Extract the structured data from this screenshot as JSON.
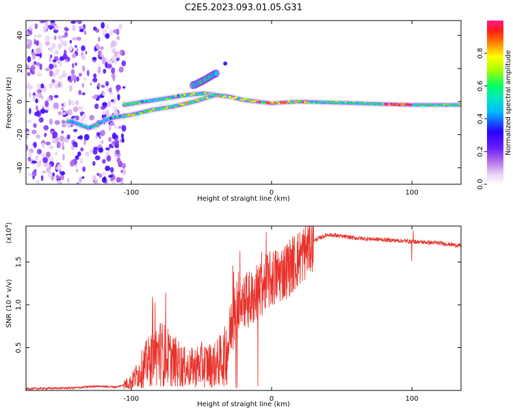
{
  "figure_title": "C2E5.2023.093.01.05.G31",
  "chart_data": [
    {
      "type": "heatmap",
      "xlabel": "Height of straight line (km)",
      "ylabel": "Frequency (Hz)",
      "xlim": [
        -175,
        135
      ],
      "ylim": [
        -50,
        49
      ],
      "xticks": [
        -100,
        0,
        100
      ],
      "yticks": [
        -40,
        -20,
        0,
        20,
        40
      ],
      "colorbar": {
        "label": "Normalized spectral amplitude",
        "range": [
          0.0,
          1.0
        ],
        "ticks": [
          0.0,
          0.2,
          0.4,
          0.6,
          0.8
        ],
        "tick_labels": [
          "0.0",
          "0.2",
          "0.4",
          "0.6",
          "0.8"
        ],
        "colormap": [
          "#ffffff",
          "#e9d3f8",
          "#8a2be2",
          "#2a00ff",
          "#00b7ff",
          "#00ff66",
          "#ffff00",
          "#ff2200",
          "#ff1a8c"
        ]
      },
      "features": {
        "noise_region_x": [
          -175,
          -105
        ],
        "main_band": [
          {
            "x": -143,
            "y": -12
          },
          {
            "x": -130,
            "y": -16
          },
          {
            "x": -115,
            "y": -10
          },
          {
            "x": -100,
            "y": -8
          },
          {
            "x": -85,
            "y": -5
          },
          {
            "x": -70,
            "y": -3
          },
          {
            "x": -55,
            "y": 0
          },
          {
            "x": -40,
            "y": 4
          },
          {
            "x": -30,
            "y": 3
          },
          {
            "x": -20,
            "y": 1
          },
          {
            "x": -10,
            "y": 0
          },
          {
            "x": 0,
            "y": -1
          },
          {
            "x": 20,
            "y": 0
          },
          {
            "x": 60,
            "y": -1
          },
          {
            "x": 100,
            "y": -2
          },
          {
            "x": 135,
            "y": -2
          }
        ],
        "upper_branch": [
          {
            "x": -105,
            "y": -2
          },
          {
            "x": -90,
            "y": 0
          },
          {
            "x": -75,
            "y": 2
          },
          {
            "x": -60,
            "y": 4
          },
          {
            "x": -48,
            "y": 5
          },
          {
            "x": -40,
            "y": 4
          }
        ],
        "tail": [
          {
            "x": -55,
            "y": 10
          },
          {
            "x": -48,
            "y": 13
          },
          {
            "x": -40,
            "y": 17
          }
        ]
      }
    },
    {
      "type": "line",
      "xlabel": "Height of straight line (km)",
      "ylabel": "SNR (10 * v/v)",
      "y_multiplier": "(x10",
      "y_multiplier_exp": "4",
      "y_multiplier_close": ")",
      "xlim": [
        -175,
        135
      ],
      "ylim": [
        0.0,
        1.92
      ],
      "xticks": [
        -100,
        0,
        100
      ],
      "yticks": [
        0.5,
        1.0,
        1.5
      ],
      "ytick_labels": [
        "0.5",
        "1.0",
        "1.5"
      ],
      "series": [
        {
          "color": "#e8332b",
          "envelope": [
            {
              "x": -175,
              "y": 0.02
            },
            {
              "x": -140,
              "y": 0.03
            },
            {
              "x": -125,
              "y": 0.05
            },
            {
              "x": -110,
              "y": 0.04
            },
            {
              "x": -100,
              "y": 0.1
            },
            {
              "x": -90,
              "y": 0.3
            },
            {
              "x": -80,
              "y": 0.45
            },
            {
              "x": -70,
              "y": 0.35
            },
            {
              "x": -60,
              "y": 0.25
            },
            {
              "x": -50,
              "y": 0.3
            },
            {
              "x": -40,
              "y": 0.3
            },
            {
              "x": -33,
              "y": 0.4
            },
            {
              "x": -28,
              "y": 0.8
            },
            {
              "x": -22,
              "y": 1.1
            },
            {
              "x": -15,
              "y": 1.05
            },
            {
              "x": -8,
              "y": 1.2
            },
            {
              "x": 0,
              "y": 1.3
            },
            {
              "x": 10,
              "y": 1.4
            },
            {
              "x": 20,
              "y": 1.55
            },
            {
              "x": 30,
              "y": 1.75
            },
            {
              "x": 40,
              "y": 1.82
            },
            {
              "x": 50,
              "y": 1.8
            },
            {
              "x": 60,
              "y": 1.78
            },
            {
              "x": 80,
              "y": 1.76
            },
            {
              "x": 100,
              "y": 1.74
            },
            {
              "x": 120,
              "y": 1.72
            },
            {
              "x": 135,
              "y": 1.69
            }
          ]
        }
      ]
    }
  ]
}
